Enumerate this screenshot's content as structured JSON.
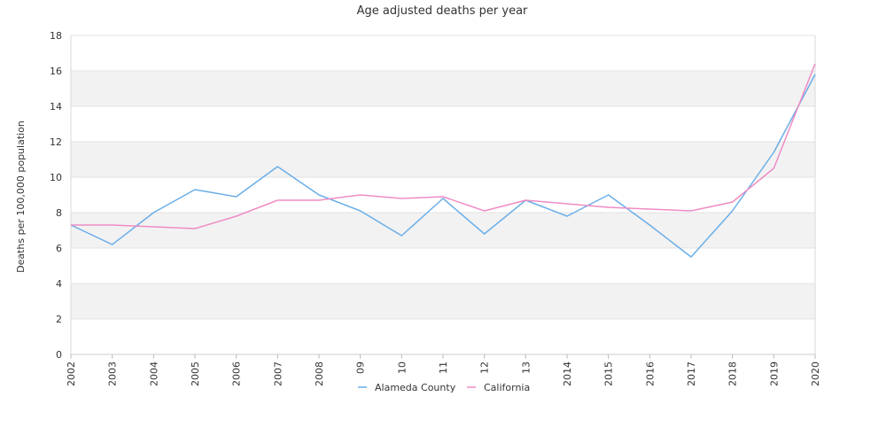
{
  "chart_data": {
    "type": "line",
    "title": "Age adjusted deaths per year",
    "xlabel": "",
    "ylabel": "Deaths per 100,000 population",
    "ylim": [
      0,
      18
    ],
    "yticks": [
      "0",
      "2",
      "4",
      "6",
      "8",
      "10",
      "12",
      "14",
      "16",
      "18"
    ],
    "x": [
      "2002",
      "2003",
      "2004",
      "2005",
      "2006",
      "2007",
      "2008",
      "09",
      "10",
      "11",
      "12",
      "13",
      "2014",
      "2015",
      "2016",
      "2017",
      "2018",
      "2019",
      "2020"
    ],
    "grid": "alternating horizontal bands",
    "legend": "bottom-center",
    "series": [
      {
        "name": "Alameda County",
        "color": "#6aaee8",
        "values": [
          7.3,
          6.2,
          8.0,
          9.3,
          8.9,
          10.6,
          9.0,
          8.1,
          6.7,
          8.8,
          6.8,
          8.7,
          7.8,
          9.0,
          7.3,
          5.5,
          8.1,
          11.4,
          15.8
        ]
      },
      {
        "name": "California",
        "color": "#ef8cc4",
        "values": [
          7.3,
          7.3,
          7.2,
          7.1,
          7.8,
          8.7,
          8.7,
          9.0,
          8.8,
          8.9,
          8.1,
          8.7,
          8.5,
          8.3,
          8.2,
          8.1,
          8.6,
          10.5,
          16.4
        ]
      }
    ]
  }
}
